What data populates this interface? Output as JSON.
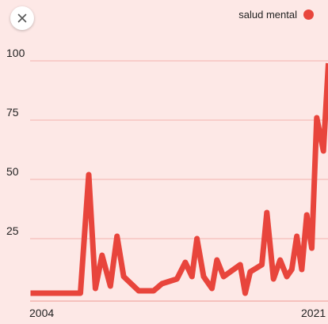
{
  "close_button": {
    "icon": "close-icon"
  },
  "legend": {
    "label": "salud mental",
    "color": "#e8453c"
  },
  "colors": {
    "background": "#fde8e6",
    "grid": "#f7c4c1",
    "line": "#e8453c",
    "baseline": "#f3b3ae"
  },
  "chart_data": {
    "type": "line",
    "title": "",
    "xlabel": "",
    "ylabel": "",
    "ylim": [
      0,
      100
    ],
    "xlim": [
      2004,
      2021.9
    ],
    "y_ticks": [
      25,
      50,
      75,
      100
    ],
    "x_ticks": [
      2004,
      2021
    ],
    "x_tick_labels": [
      "2004",
      "2021"
    ],
    "y_tick_labels": [
      "25",
      "50",
      "75",
      "100"
    ],
    "grid": true,
    "legend_position": "top-right",
    "series": [
      {
        "name": "salud mental",
        "x": [
          2004,
          2007.0,
          2007.5,
          2007.9,
          2008.3,
          2008.8,
          2009.2,
          2009.6,
          2010.5,
          2011.4,
          2011.9,
          2012.8,
          2013.3,
          2013.7,
          2014.0,
          2014.4,
          2014.9,
          2015.2,
          2015.6,
          2016.6,
          2016.9,
          2017.2,
          2017.9,
          2018.2,
          2018.6,
          2019.0,
          2019.4,
          2019.7,
          2020.0,
          2020.3,
          2020.6,
          2020.9,
          2021.2,
          2021.6,
          2021.9
        ],
        "values": [
          2,
          2,
          52,
          4,
          18,
          5,
          26,
          9,
          3,
          3,
          6,
          8,
          15,
          9,
          25,
          9,
          4,
          16,
          9,
          14,
          2,
          11,
          14,
          36,
          8,
          16,
          9,
          12,
          26,
          12,
          35,
          21,
          76,
          62,
          99
        ]
      }
    ]
  }
}
